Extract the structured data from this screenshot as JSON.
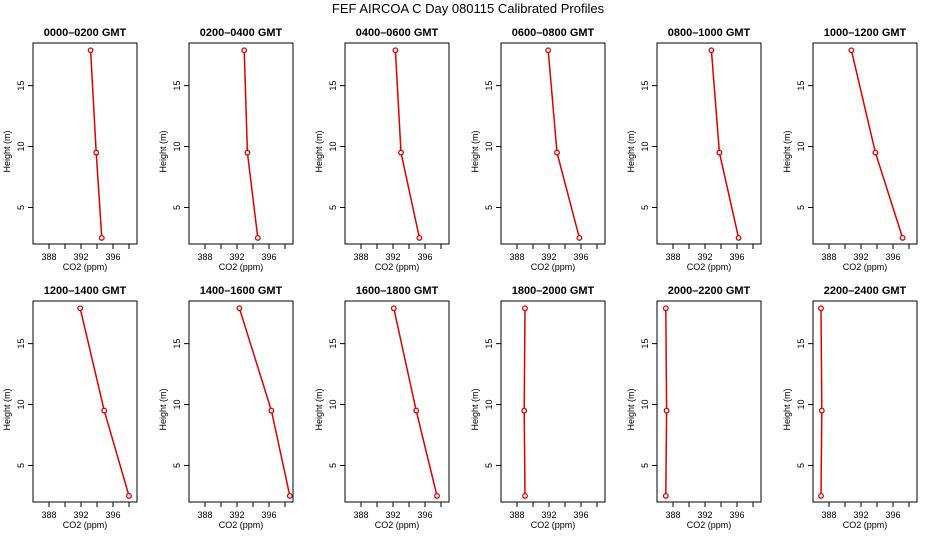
{
  "figure": {
    "title": "FEF AIRCOA C  Day 080115  Calibrated Profiles"
  },
  "chart_data": {
    "type": "line",
    "xlabel": "CO2 (ppm)",
    "ylabel": "Height (m)",
    "xlim": [
      386,
      399
    ],
    "ylim": [
      2,
      18.5
    ],
    "xticks": [
      388,
      392,
      396
    ],
    "yticks": [
      5,
      10,
      15
    ],
    "line_color": "#dd0000",
    "heights": [
      17.9,
      9.5,
      2.5
    ],
    "panels": [
      {
        "title": "0000–0200 GMT",
        "co2": [
          393.2,
          393.9,
          394.6
        ]
      },
      {
        "title": "0200–0400 GMT",
        "co2": [
          392.9,
          393.3,
          394.6
        ]
      },
      {
        "title": "0400–0600 GMT",
        "co2": [
          392.3,
          393.0,
          395.3
        ]
      },
      {
        "title": "0600–0800 GMT",
        "co2": [
          391.9,
          393.0,
          395.8
        ]
      },
      {
        "title": "0800–1000 GMT",
        "co2": [
          392.8,
          393.8,
          396.2
        ]
      },
      {
        "title": "1000–1200 GMT",
        "co2": [
          390.8,
          393.8,
          397.2
        ]
      },
      {
        "title": "1200–1400 GMT",
        "co2": [
          391.9,
          394.9,
          398.0
        ]
      },
      {
        "title": "1400–1600 GMT",
        "co2": [
          392.3,
          396.3,
          398.6
        ]
      },
      {
        "title": "1600–1800 GMT",
        "co2": [
          392.1,
          394.9,
          397.5
        ]
      },
      {
        "title": "1800–2000 GMT",
        "co2": [
          389.0,
          388.9,
          389.0
        ]
      },
      {
        "title": "2000–2200 GMT",
        "co2": [
          387.1,
          387.2,
          387.1
        ]
      },
      {
        "title": "2200–2400 GMT",
        "co2": [
          387.0,
          387.1,
          387.0
        ]
      }
    ]
  }
}
